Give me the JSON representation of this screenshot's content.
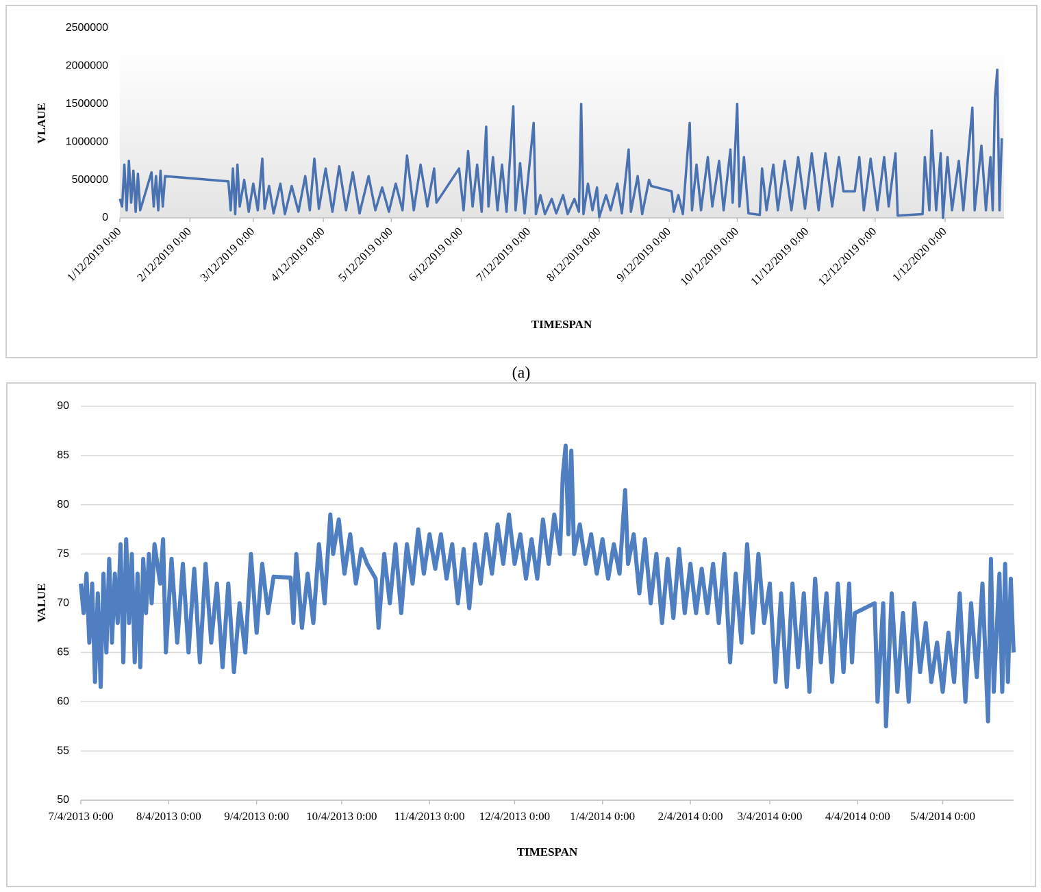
{
  "caption": "(a)",
  "chart_data": [
    {
      "type": "line",
      "x_label": "TIMESPAN",
      "y_label": "VLAUE",
      "color": "#4a72b0",
      "grid": false,
      "xlim": [
        "2019-01-12",
        "2020-02-07"
      ],
      "xticks": [
        {
          "value": "2019-01-12",
          "label": "1/12/2019 0:00"
        },
        {
          "value": "2019-02-12",
          "label": "2/12/2019 0:00"
        },
        {
          "value": "2019-03-12",
          "label": "3/12/2019 0:00"
        },
        {
          "value": "2019-04-12",
          "label": "4/12/2019 0:00"
        },
        {
          "value": "2019-05-12",
          "label": "5/12/2019 0:00"
        },
        {
          "value": "2019-06-12",
          "label": "6/12/2019 0:00"
        },
        {
          "value": "2019-07-12",
          "label": "7/12/2019 0:00"
        },
        {
          "value": "2019-08-12",
          "label": "8/12/2019 0:00"
        },
        {
          "value": "2019-09-12",
          "label": "9/12/2019 0:00"
        },
        {
          "value": "2019-10-12",
          "label": "10/12/2019 0:00"
        },
        {
          "value": "2019-11-12",
          "label": "11/12/2019 0:00"
        },
        {
          "value": "2019-12-12",
          "label": "12/12/2019 0:00"
        },
        {
          "value": "2020-01-12",
          "label": "1/12/2020 0:00"
        }
      ],
      "ylim": [
        0,
        2500000
      ],
      "yticks": [
        0,
        500000,
        1000000,
        1500000,
        2000000,
        2500000
      ],
      "x": [
        "2019-01-12",
        "2019-01-13",
        "2019-01-14",
        "2019-01-15",
        "2019-01-16",
        "2019-01-17",
        "2019-01-18",
        "2019-01-19",
        "2019-01-20",
        "2019-01-21",
        "2019-01-24",
        "2019-01-26",
        "2019-01-27",
        "2019-01-28",
        "2019-01-29",
        "2019-01-30",
        "2019-01-31",
        "2019-02-01",
        "2019-03-01",
        "2019-03-02",
        "2019-03-03",
        "2019-03-04",
        "2019-03-05",
        "2019-03-06",
        "2019-03-08",
        "2019-03-10",
        "2019-03-12",
        "2019-03-14",
        "2019-03-16",
        "2019-03-17",
        "2019-03-19",
        "2019-03-21",
        "2019-03-24",
        "2019-03-26",
        "2019-03-29",
        "2019-04-01",
        "2019-04-04",
        "2019-04-06",
        "2019-04-08",
        "2019-04-10",
        "2019-04-13",
        "2019-04-16",
        "2019-04-19",
        "2019-04-22",
        "2019-04-25",
        "2019-04-28",
        "2019-05-02",
        "2019-05-05",
        "2019-05-08",
        "2019-05-11",
        "2019-05-14",
        "2019-05-17",
        "2019-05-19",
        "2019-05-22",
        "2019-05-25",
        "2019-05-28",
        "2019-05-31",
        "2019-06-01",
        "2019-06-11",
        "2019-06-13",
        "2019-06-15",
        "2019-06-17",
        "2019-06-19",
        "2019-06-21",
        "2019-06-23",
        "2019-06-24",
        "2019-06-26",
        "2019-06-28",
        "2019-06-30",
        "2019-07-02",
        "2019-07-05",
        "2019-07-06",
        "2019-07-08",
        "2019-07-10",
        "2019-07-14",
        "2019-07-15",
        "2019-07-17",
        "2019-07-19",
        "2019-07-22",
        "2019-07-24",
        "2019-07-27",
        "2019-07-29",
        "2019-08-01",
        "2019-08-03",
        "2019-08-04",
        "2019-08-05",
        "2019-08-07",
        "2019-08-09",
        "2019-08-11",
        "2019-08-12",
        "2019-08-15",
        "2019-08-17",
        "2019-08-20",
        "2019-08-22",
        "2019-08-25",
        "2019-08-26",
        "2019-08-29",
        "2019-08-31",
        "2019-09-03",
        "2019-09-04",
        "2019-09-13",
        "2019-09-14",
        "2019-09-16",
        "2019-09-18",
        "2019-09-21",
        "2019-09-22",
        "2019-09-24",
        "2019-09-26",
        "2019-09-29",
        "2019-10-01",
        "2019-10-04",
        "2019-10-06",
        "2019-10-09",
        "2019-10-10",
        "2019-10-12",
        "2019-10-13",
        "2019-10-15",
        "2019-10-17",
        "2019-10-22",
        "2019-10-23",
        "2019-10-25",
        "2019-10-28",
        "2019-10-30",
        "2019-11-02",
        "2019-11-05",
        "2019-11-08",
        "2019-11-11",
        "2019-11-14",
        "2019-11-17",
        "2019-11-20",
        "2019-11-23",
        "2019-11-26",
        "2019-11-28",
        "2019-12-03",
        "2019-12-05",
        "2019-12-07",
        "2019-12-10",
        "2019-12-13",
        "2019-12-16",
        "2019-12-18",
        "2019-12-21",
        "2019-12-22",
        "2020-01-02",
        "2020-01-03",
        "2020-01-05",
        "2020-01-06",
        "2020-01-08",
        "2020-01-10",
        "2020-01-11",
        "2020-01-13",
        "2020-01-15",
        "2020-01-18",
        "2020-01-20",
        "2020-01-24",
        "2020-01-25",
        "2020-01-28",
        "2020-01-30",
        "2020-02-01",
        "2020-02-02",
        "2020-02-03",
        "2020-02-04",
        "2020-02-05",
        "2020-02-06"
      ],
      "values": [
        250000,
        150000,
        700000,
        100000,
        750000,
        200000,
        620000,
        80000,
        580000,
        100000,
        400000,
        600000,
        150000,
        550000,
        100000,
        620000,
        150000,
        550000,
        480000,
        100000,
        650000,
        50000,
        700000,
        150000,
        500000,
        80000,
        450000,
        100000,
        780000,
        120000,
        420000,
        60000,
        450000,
        50000,
        420000,
        80000,
        550000,
        100000,
        780000,
        120000,
        650000,
        80000,
        680000,
        100000,
        600000,
        60000,
        550000,
        100000,
        400000,
        80000,
        450000,
        100000,
        820000,
        100000,
        700000,
        150000,
        650000,
        200000,
        650000,
        100000,
        880000,
        150000,
        700000,
        80000,
        1200000,
        150000,
        800000,
        100000,
        700000,
        80000,
        1470000,
        100000,
        720000,
        60000,
        1250000,
        50000,
        300000,
        50000,
        250000,
        60000,
        300000,
        50000,
        250000,
        80000,
        1500000,
        50000,
        450000,
        100000,
        400000,
        10000,
        300000,
        100000,
        450000,
        60000,
        900000,
        80000,
        550000,
        50000,
        500000,
        420000,
        350000,
        80000,
        300000,
        50000,
        1250000,
        100000,
        700000,
        100000,
        800000,
        150000,
        750000,
        100000,
        900000,
        200000,
        1500000,
        150000,
        800000,
        60000,
        40000,
        650000,
        100000,
        700000,
        100000,
        750000,
        100000,
        800000,
        120000,
        850000,
        100000,
        850000,
        150000,
        800000,
        350000,
        350000,
        800000,
        100000,
        780000,
        100000,
        800000,
        150000,
        850000,
        30000,
        50000,
        800000,
        100000,
        1150000,
        100000,
        850000,
        0,
        800000,
        100000,
        750000,
        100000,
        1450000,
        100000,
        950000,
        100000,
        800000,
        100000,
        1580000,
        1950000,
        100000,
        1050000
      ]
    },
    {
      "type": "line",
      "x_label": "TIMESPAN",
      "y_label": "VALUE",
      "color": "#4f7fc0",
      "grid": true,
      "xlim": [
        "2013-07-04",
        "2014-05-29"
      ],
      "xticks": [
        {
          "value": "2013-07-04",
          "label": "7/4/2013 0:00"
        },
        {
          "value": "2013-08-04",
          "label": "8/4/2013 0:00"
        },
        {
          "value": "2013-09-04",
          "label": "9/4/2013 0:00"
        },
        {
          "value": "2013-10-04",
          "label": "10/4/2013 0:00"
        },
        {
          "value": "2013-11-04",
          "label": "11/4/2013 0:00"
        },
        {
          "value": "2013-12-04",
          "label": "12/4/2013 0:00"
        },
        {
          "value": "2014-01-04",
          "label": "1/4/2014 0:00"
        },
        {
          "value": "2014-02-04",
          "label": "2/4/2014 0:00"
        },
        {
          "value": "2014-03-04",
          "label": "3/4/2014 0:00"
        },
        {
          "value": "2014-04-04",
          "label": "4/4/2014 0:00"
        },
        {
          "value": "2014-05-04",
          "label": "5/4/2014 0:00"
        }
      ],
      "ylim": [
        50,
        90
      ],
      "yticks": [
        50,
        55,
        60,
        65,
        70,
        75,
        80,
        85,
        90
      ],
      "x": [
        "2013-07-04",
        "2013-07-05",
        "2013-07-06",
        "2013-07-07",
        "2013-07-08",
        "2013-07-09",
        "2013-07-10",
        "2013-07-11",
        "2013-07-12",
        "2013-07-13",
        "2013-07-14",
        "2013-07-15",
        "2013-07-16",
        "2013-07-17",
        "2013-07-18",
        "2013-07-19",
        "2013-07-20",
        "2013-07-21",
        "2013-07-22",
        "2013-07-23",
        "2013-07-24",
        "2013-07-25",
        "2013-07-26",
        "2013-07-27",
        "2013-07-28",
        "2013-07-29",
        "2013-07-30",
        "2013-08-01",
        "2013-08-02",
        "2013-08-03",
        "2013-08-05",
        "2013-08-07",
        "2013-08-09",
        "2013-08-11",
        "2013-08-13",
        "2013-08-15",
        "2013-08-17",
        "2013-08-19",
        "2013-08-21",
        "2013-08-23",
        "2013-08-25",
        "2013-08-27",
        "2013-08-29",
        "2013-08-31",
        "2013-09-02",
        "2013-09-04",
        "2013-09-06",
        "2013-09-08",
        "2013-09-10",
        "2013-09-16",
        "2013-09-17",
        "2013-09-18",
        "2013-09-20",
        "2013-09-22",
        "2013-09-24",
        "2013-09-26",
        "2013-09-28",
        "2013-09-30",
        "2013-10-01",
        "2013-10-03",
        "2013-10-05",
        "2013-10-07",
        "2013-10-09",
        "2013-10-11",
        "2013-10-13",
        "2013-10-16",
        "2013-10-17",
        "2013-10-19",
        "2013-10-21",
        "2013-10-23",
        "2013-10-25",
        "2013-10-27",
        "2013-10-29",
        "2013-10-31",
        "2013-11-02",
        "2013-11-04",
        "2013-11-06",
        "2013-11-08",
        "2013-11-10",
        "2013-11-12",
        "2013-11-14",
        "2013-11-16",
        "2013-11-18",
        "2013-11-20",
        "2013-11-22",
        "2013-11-24",
        "2013-11-26",
        "2013-11-28",
        "2013-11-30",
        "2013-12-02",
        "2013-12-04",
        "2013-12-06",
        "2013-12-08",
        "2013-12-10",
        "2013-12-12",
        "2013-12-14",
        "2013-12-16",
        "2013-12-18",
        "2013-12-20",
        "2013-12-21",
        "2013-12-22",
        "2013-12-23",
        "2013-12-24",
        "2013-12-25",
        "2013-12-27",
        "2013-12-29",
        "2013-12-31",
        "2014-01-02",
        "2014-01-04",
        "2014-01-06",
        "2014-01-08",
        "2014-01-10",
        "2014-01-12",
        "2014-01-13",
        "2014-01-15",
        "2014-01-17",
        "2014-01-19",
        "2014-01-21",
        "2014-01-23",
        "2014-01-25",
        "2014-01-27",
        "2014-01-29",
        "2014-01-31",
        "2014-02-02",
        "2014-02-04",
        "2014-02-06",
        "2014-02-08",
        "2014-02-10",
        "2014-02-12",
        "2014-02-14",
        "2014-02-16",
        "2014-02-18",
        "2014-02-20",
        "2014-02-22",
        "2014-02-24",
        "2014-02-26",
        "2014-02-28",
        "2014-03-02",
        "2014-03-04",
        "2014-03-06",
        "2014-03-08",
        "2014-03-10",
        "2014-03-12",
        "2014-03-14",
        "2014-03-16",
        "2014-03-18",
        "2014-03-20",
        "2014-03-22",
        "2014-03-24",
        "2014-03-26",
        "2014-03-28",
        "2014-03-30",
        "2014-04-01",
        "2014-04-02",
        "2014-04-03",
        "2014-04-10",
        "2014-04-11",
        "2014-04-13",
        "2014-04-14",
        "2014-04-16",
        "2014-04-18",
        "2014-04-20",
        "2014-04-22",
        "2014-04-24",
        "2014-04-26",
        "2014-04-28",
        "2014-04-30",
        "2014-05-02",
        "2014-05-04",
        "2014-05-06",
        "2014-05-08",
        "2014-05-10",
        "2014-05-12",
        "2014-05-14",
        "2014-05-16",
        "2014-05-18",
        "2014-05-20",
        "2014-05-21",
        "2014-05-22",
        "2014-05-24",
        "2014-05-25",
        "2014-05-26",
        "2014-05-27",
        "2014-05-28",
        "2014-05-29"
      ],
      "values": [
        72,
        69,
        73,
        66,
        72,
        62,
        71,
        61.5,
        73,
        65,
        74.5,
        66,
        73,
        68,
        76,
        64,
        76.5,
        68,
        75,
        64,
        73,
        63.5,
        74.5,
        69,
        75,
        70,
        76,
        72,
        76.5,
        65,
        74.5,
        66,
        74,
        65,
        73.5,
        64,
        74,
        66,
        72,
        63.5,
        72,
        63,
        70,
        65,
        75,
        67,
        74,
        69,
        72.7,
        72.6,
        68,
        75,
        67.5,
        73,
        68,
        76,
        70,
        79,
        75,
        78.5,
        73,
        77,
        72,
        75.5,
        74,
        72.5,
        67.5,
        75,
        70,
        76,
        69,
        76,
        72,
        77.5,
        73,
        77,
        73.5,
        77,
        72.5,
        76,
        70,
        75.5,
        69.5,
        76,
        72,
        77,
        73,
        78,
        74,
        79,
        74,
        77,
        72.5,
        76.5,
        72.5,
        78.5,
        74,
        79,
        75,
        83,
        86,
        77,
        85.5,
        75,
        78,
        74,
        77,
        73,
        76.5,
        72.5,
        76,
        73,
        81.5,
        74,
        77,
        71,
        76.5,
        70,
        75,
        68,
        74.5,
        68.5,
        75.5,
        69,
        74,
        69,
        73.5,
        69,
        74,
        68,
        75,
        64,
        73,
        66,
        76,
        67,
        75,
        68,
        72,
        62,
        71,
        61.5,
        72,
        63.5,
        71,
        61,
        72.5,
        64,
        71,
        62,
        72,
        63,
        72,
        64,
        69,
        70,
        60,
        70,
        57.5,
        71,
        61,
        69,
        60,
        70,
        63,
        68,
        62,
        66,
        61,
        67,
        62,
        71,
        60,
        70,
        62.5,
        72,
        58,
        74.5,
        61,
        73,
        61,
        74,
        62,
        72.5,
        65
      ]
    }
  ]
}
